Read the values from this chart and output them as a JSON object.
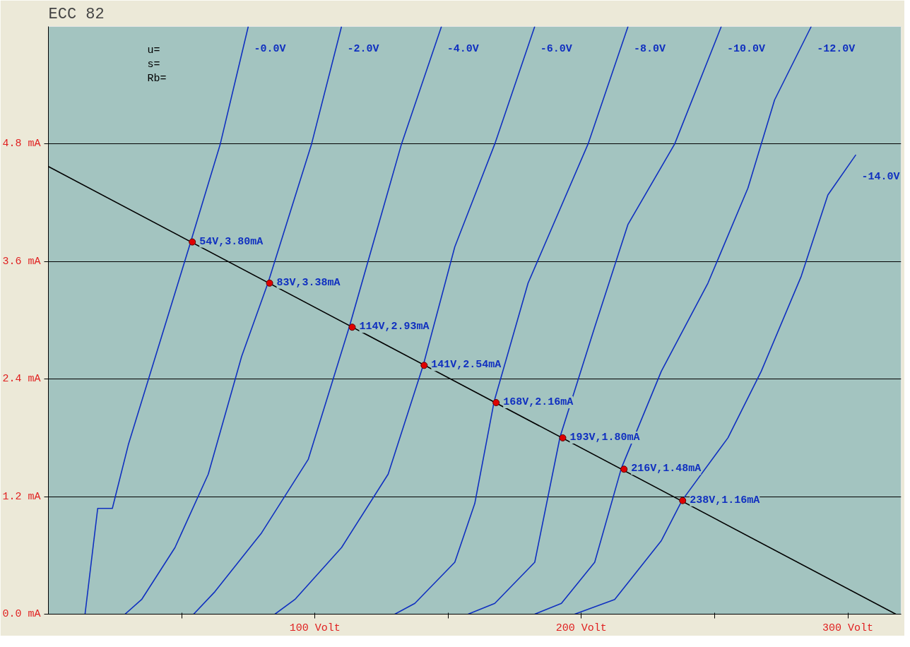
{
  "chart_data": {
    "type": "line",
    "title": "ECC 82",
    "xlim": [
      0,
      320
    ],
    "ylim": [
      0,
      6
    ],
    "xticks": [
      {
        "value": 50,
        "label": null
      },
      {
        "value": 100,
        "label": "100 Volt"
      },
      {
        "value": 150,
        "label": null
      },
      {
        "value": 200,
        "label": "200 Volt"
      },
      {
        "value": 250,
        "label": null
      },
      {
        "value": 300,
        "label": "300 Volt"
      }
    ],
    "yticks": [
      {
        "value": 0,
        "label": "0.0 mA"
      },
      {
        "value": 1.2,
        "label": "1.2 mA"
      },
      {
        "value": 2.4,
        "label": "2.4 mA"
      },
      {
        "value": 3.6,
        "label": "3.6 mA"
      },
      {
        "value": 4.8,
        "label": "4.8 mA"
      }
    ],
    "grid": "y",
    "marker": "none",
    "line_style": "solid",
    "series": [
      {
        "name": "-0.0V",
        "color": "#1030c0",
        "x": [
          13.75,
          18.5,
          24,
          30,
          53.5,
          64.5,
          75
        ],
        "values": [
          0,
          1.08,
          1.08,
          1.73,
          3.81,
          4.8,
          6.0
        ]
      },
      {
        "name": "-2.0V",
        "color": "#1030c0",
        "x": [
          28.75,
          35,
          47.5,
          60,
          72.5,
          82.5,
          98.75,
          110
        ],
        "values": [
          0,
          0.15,
          0.68,
          1.43,
          2.63,
          3.39,
          4.8,
          6.0
        ]
      },
      {
        "name": "-4.0V",
        "color": "#1030c0",
        "x": [
          54.5,
          62.5,
          80,
          97.5,
          113,
          132.5,
          147.5
        ],
        "values": [
          0,
          0.23,
          0.83,
          1.58,
          2.94,
          4.8,
          6.0
        ]
      },
      {
        "name": "-6.0V",
        "color": "#1030c0",
        "x": [
          85,
          92.5,
          110,
          127.5,
          140.75,
          152.5,
          167.5,
          182.5
        ],
        "values": [
          0,
          0.15,
          0.68,
          1.43,
          2.55,
          3.75,
          4.8,
          6.0
        ]
      },
      {
        "name": "-8.0V",
        "color": "#1030c0",
        "x": [
          130,
          137.5,
          152.5,
          160,
          167.25,
          180,
          202.5,
          217.5
        ],
        "values": [
          0,
          0.11,
          0.53,
          1.13,
          2.17,
          3.38,
          4.8,
          6.0
        ]
      },
      {
        "name": "-10.0V",
        "color": "#1030c0",
        "x": [
          157.5,
          167.5,
          182.5,
          192,
          205,
          217.5,
          235,
          252.5
        ],
        "values": [
          0,
          0.11,
          0.53,
          1.81,
          2.93,
          3.98,
          4.8,
          6.0
        ]
      },
      {
        "name": "-12.0V",
        "color": "#1030c0",
        "x": [
          182.5,
          192.5,
          205,
          215,
          230,
          247.5,
          262.5,
          272.5,
          286.25
        ],
        "values": [
          0,
          0.11,
          0.53,
          1.49,
          2.48,
          3.38,
          4.35,
          5.25,
          6.0
        ]
      },
      {
        "name": "-14.0V",
        "color": "#1030c0",
        "x": [
          197.5,
          212.5,
          230,
          237.75,
          255,
          267.5,
          282.5,
          292.5,
          303
        ],
        "values": [
          0,
          0.15,
          0.75,
          1.16,
          1.8,
          2.48,
          3.45,
          4.28,
          4.69
        ]
      },
      {
        "color": "#000000",
        "x": [
          0,
          318
        ],
        "values": [
          4.57,
          0
        ]
      },
      {
        "type": "scatter",
        "marker": "circle",
        "color": "#e00000",
        "x": [
          54,
          83,
          114,
          141,
          168,
          193,
          216,
          238
        ],
        "values": [
          3.8,
          3.38,
          2.93,
          2.54,
          2.16,
          1.8,
          1.48,
          1.16
        ]
      }
    ],
    "annotations": [
      "u=",
      "s=",
      "Rb=",
      {
        "text": "54V,3.80mA",
        "x": 54,
        "y": 3.8
      },
      {
        "text": "83V,3.38mA",
        "x": 83,
        "y": 3.38
      },
      {
        "text": "114V,2.93mA",
        "x": 114,
        "y": 2.93
      },
      {
        "text": "141V,2.54mA",
        "x": 141,
        "y": 2.54
      },
      {
        "text": "168V,2.16mA",
        "x": 168,
        "y": 2.16
      },
      {
        "text": "193V,1.80mA",
        "x": 193,
        "y": 1.8
      },
      {
        "text": "216V,1.48mA",
        "x": 216,
        "y": 1.48
      },
      {
        "text": "238V,1.16mA",
        "x": 238,
        "y": 1.16
      }
    ]
  }
}
